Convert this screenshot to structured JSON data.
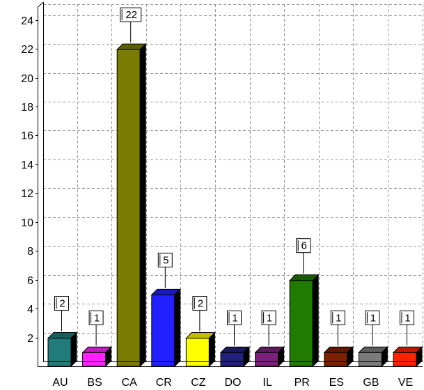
{
  "chart_data": {
    "type": "bar",
    "title": "",
    "xlabel": "",
    "ylabel": "",
    "categories": [
      "AU",
      "BS",
      "CA",
      "CR",
      "CZ",
      "DO",
      "IL",
      "PR",
      "ES",
      "GB",
      "VE"
    ],
    "values": [
      2,
      1,
      22,
      5,
      2,
      1,
      1,
      6,
      1,
      1,
      1
    ],
    "colors": [
      "#217b7b",
      "#ff21ff",
      "#7b7b00",
      "#2121ff",
      "#ffff00",
      "#21217b",
      "#7b217b",
      "#217b00",
      "#7b2100",
      "#7b7b7b",
      "#ff2100"
    ],
    "ylim": [
      0,
      25
    ],
    "yticks": [
      2,
      4,
      6,
      8,
      10,
      12,
      14,
      16,
      18,
      20,
      22,
      24
    ],
    "grid": true,
    "data_labels": true,
    "style": "3d-bar"
  }
}
